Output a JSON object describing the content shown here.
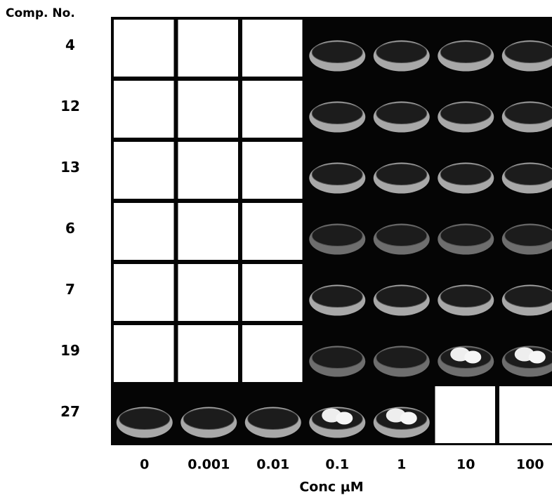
{
  "header": "Comp. No.",
  "rows": [
    "4",
    "12",
    "13",
    "6",
    "7",
    "19",
    "27"
  ],
  "columns": [
    "0",
    "0.001",
    "0.01",
    "0.1",
    "1",
    "10",
    "100"
  ],
  "axis_label": "Conc μM"
}
